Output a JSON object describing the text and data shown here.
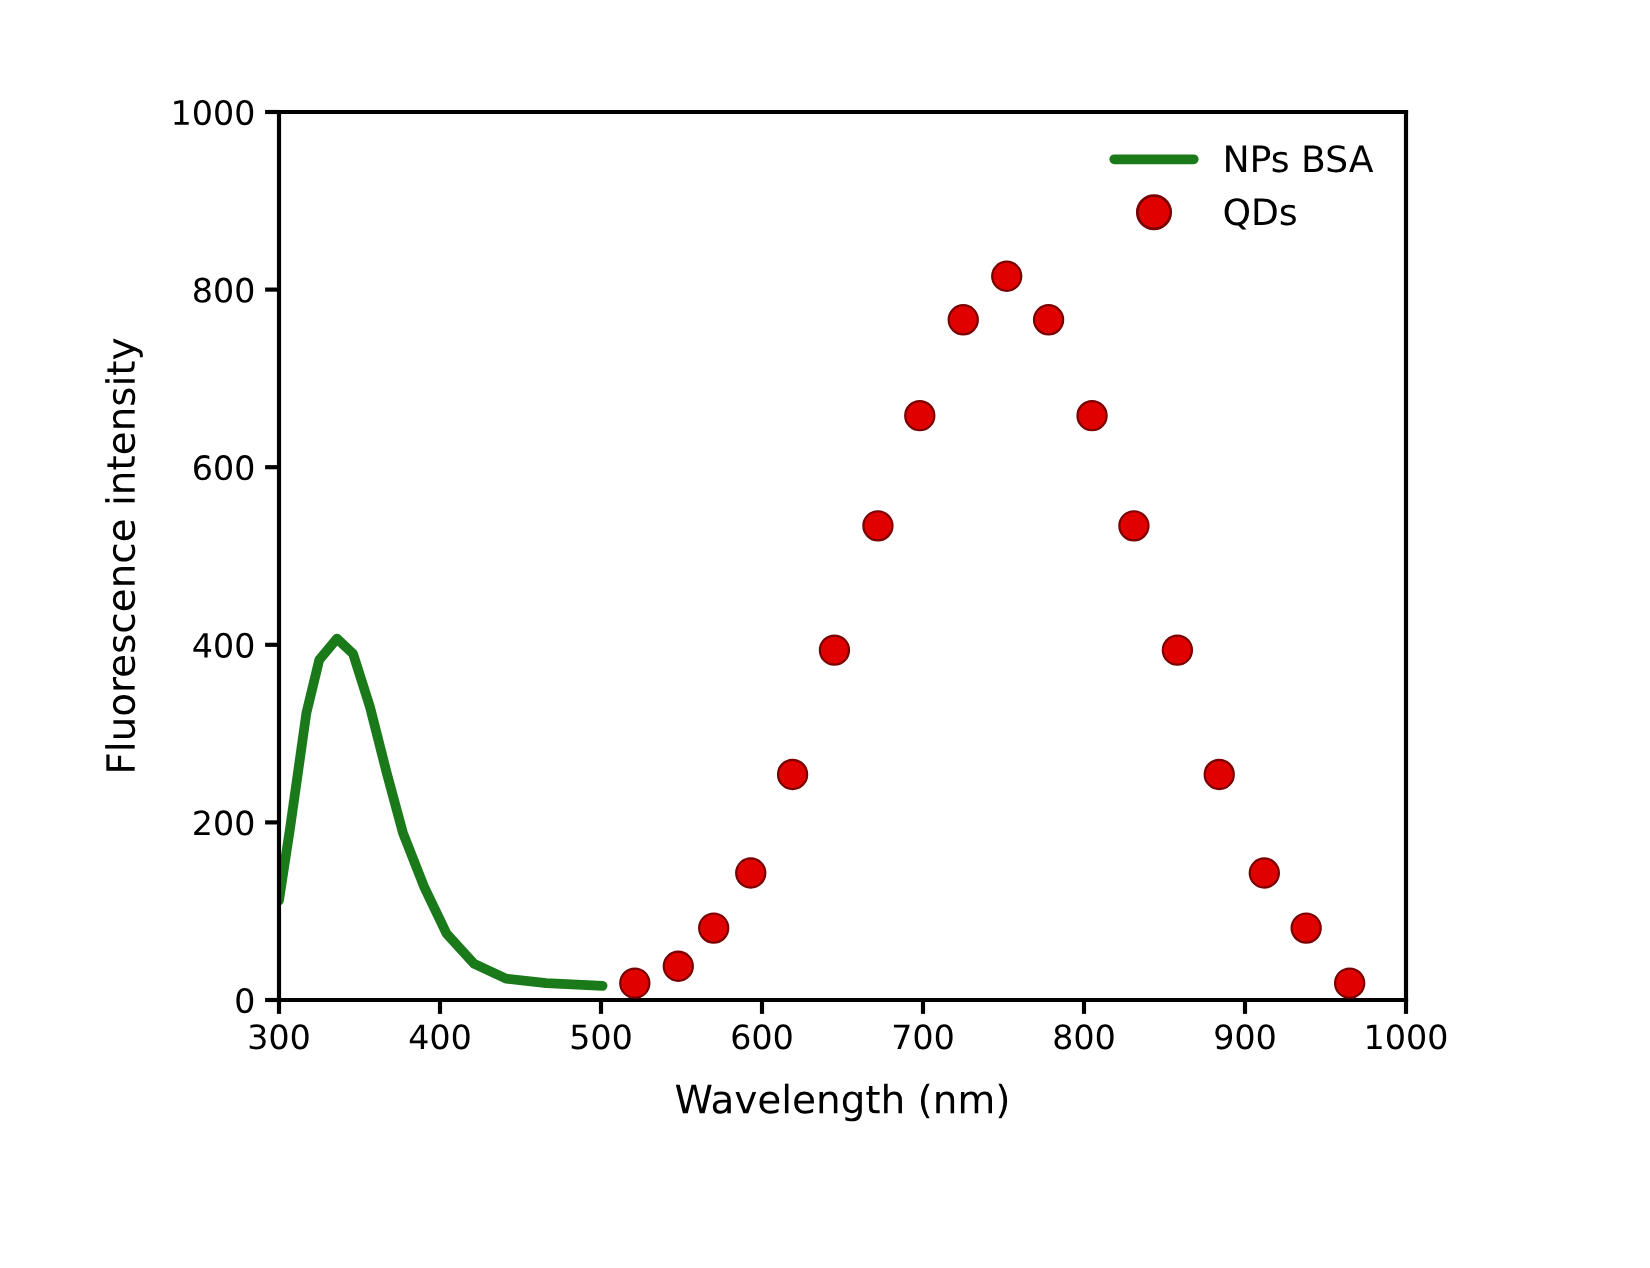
{
  "chart_data": {
    "type": "line",
    "xlabel": "Wavelength (nm)",
    "ylabel": "Fluorescence intensity",
    "xlim": [
      300,
      1000
    ],
    "xticks": [
      300,
      400,
      500,
      600,
      700,
      800,
      900,
      1000
    ],
    "ylim": [
      0,
      1000
    ],
    "yticks": [
      0,
      200,
      400,
      600,
      800,
      1000
    ],
    "grid": false,
    "legend": "top right",
    "series": [
      {
        "name": "NPs BSA",
        "color": "#1a7a1a",
        "marker": "none",
        "line_style": "solid",
        "x": [
          300,
          307,
          317,
          325,
          336,
          346,
          356.5,
          367,
          377,
          390,
          404,
          421,
          441,
          466,
          501
        ],
        "values": [
          112,
          195,
          323,
          383,
          407,
          390,
          330,
          255,
          188,
          128,
          75,
          41,
          24,
          19,
          16
        ]
      },
      {
        "name": "QDs",
        "type": "scatter",
        "color": "#e00000",
        "marker": "circle",
        "x": [
          521,
          548,
          570,
          593,
          619,
          645,
          672,
          698,
          725,
          752,
          778,
          805,
          831,
          858,
          884,
          912,
          938,
          965
        ],
        "values": [
          19,
          38,
          81,
          143,
          254,
          394,
          534,
          658,
          766,
          815,
          766,
          658,
          534,
          394,
          254,
          143,
          81,
          19
        ]
      }
    ]
  }
}
